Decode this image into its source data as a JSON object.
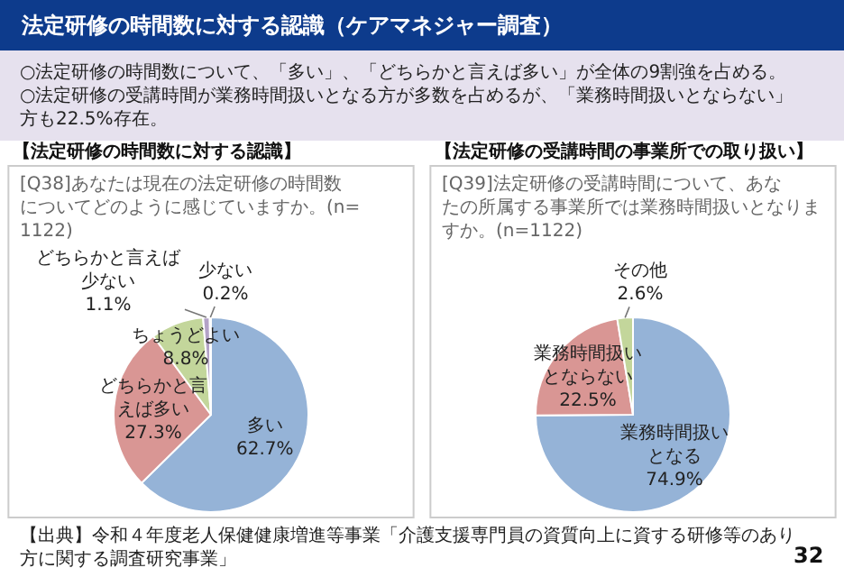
{
  "chart_data": [
    {
      "type": "pie",
      "title": "【法定研修の時間数に対する認識】",
      "categories": [
        "多い",
        "どちらかと言えば多い",
        "ちょうどよい",
        "どちらかと言えば少ない",
        "少ない"
      ],
      "values": [
        62.7,
        27.3,
        8.8,
        1.1,
        0.2
      ],
      "value_labels": [
        "62.7%",
        "27.3%",
        "8.8%",
        "1.1%",
        "0.2%"
      ],
      "colors": [
        "#95b3d7",
        "#d99694",
        "#c3d69b",
        "#b3a2c7",
        "#fac090"
      ],
      "annotations": [
        "法定研修の時間数に対する認識（ケアマネジャー調査）",
        "○法定研修の時間数について、「多い」、「どちらかと言えば多い」が全体の9割強を占める。",
        "○法定研修の受講時間が業務時間扱いとなる方が多数を占めるが、「業務時間扱いとならない」方も22.5%存在。",
        "[Q38]あなたは現在の法定研修の時間数についてどのように感じていますか。(n=1122)",
        "【出典】令和４年度老人保健健康増進等事業「介護支援専門員の資質向上に資する研修等のあり方に関する調査研究事業」",
        "32"
      ]
    },
    {
      "type": "pie",
      "title": "【法定研修の受講時間の事業所での取り扱い】",
      "categories": [
        "業務時間扱いとなる",
        "業務時間扱いとならない",
        "その他"
      ],
      "values": [
        74.9,
        22.5,
        2.6
      ],
      "value_labels": [
        "74.9%",
        "22.5%",
        "2.6%"
      ],
      "colors": [
        "#95b3d7",
        "#d99694",
        "#c3d69b"
      ],
      "annotations": [
        "[Q39]法定研修の受講時間について、あなたの所属する事業所では業務時間扱いとなりますか。(n=1122)"
      ]
    }
  ]
}
